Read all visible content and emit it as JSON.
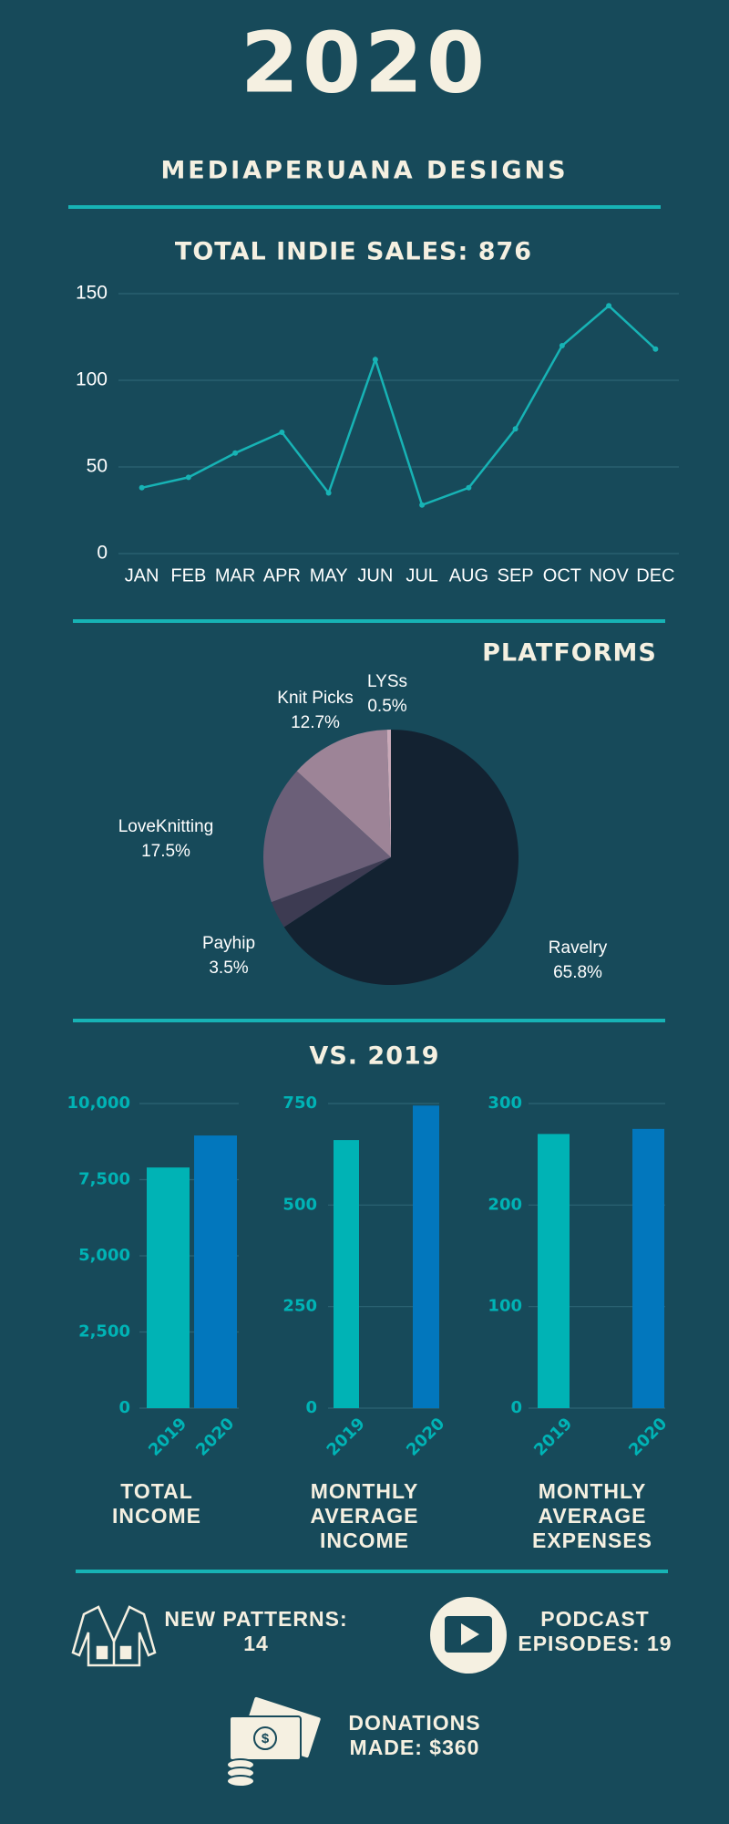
{
  "title": "2020",
  "subtitle": "MEDIAPERUANA DESIGNS",
  "comparison_title": "VS. 2019",
  "chart_data": [
    {
      "type": "line",
      "title": "TOTAL INDIE SALES: 876",
      "categories": [
        "JAN",
        "FEB",
        "MAR",
        "APR",
        "MAY",
        "JUN",
        "JUL",
        "AUG",
        "SEP",
        "OCT",
        "NOV",
        "DEC"
      ],
      "values": [
        38,
        44,
        58,
        70,
        35,
        112,
        28,
        38,
        72,
        120,
        143,
        118
      ],
      "color": "#17b3b5",
      "ylim": [
        0,
        150
      ],
      "yticks": [
        0,
        50,
        100,
        150
      ],
      "grid": true
    },
    {
      "type": "pie",
      "title": "PLATFORMS",
      "categories": [
        "Ravelry",
        "Payhip",
        "LoveKnitting",
        "Knit Picks",
        "LYSs"
      ],
      "values": [
        65.8,
        3.5,
        17.5,
        12.7,
        0.5
      ],
      "value_labels": [
        "65.8%",
        "3.5%",
        "17.5%",
        "12.7%",
        "0.5%"
      ],
      "colors": [
        "#132231",
        "#3d3b52",
        "#6b5f78",
        "#9d8497",
        "#c9a9b8"
      ]
    },
    {
      "type": "bar",
      "title": "TOTAL INCOME",
      "categories": [
        "2019",
        "2020"
      ],
      "values": [
        7900,
        8950
      ],
      "colors": [
        "#00b3b5",
        "#0277bd"
      ],
      "ylim": [
        0,
        10000
      ],
      "yticks": [
        0,
        {
          "value": 2500,
          "label": "2,500"
        },
        {
          "value": 5000,
          "label": "5,000"
        },
        {
          "value": 7500,
          "label": "7,500"
        },
        {
          "value": 10000,
          "label": "10,000"
        }
      ],
      "grid": true
    },
    {
      "type": "bar",
      "title": "MONTHLY AVERAGE INCOME",
      "categories": [
        "2019",
        "2020"
      ],
      "values": [
        660,
        745
      ],
      "colors": [
        "#00b3b5",
        "#0277bd"
      ],
      "ylim": [
        0,
        750
      ],
      "yticks": [
        0,
        250,
        500,
        750
      ],
      "grid": true
    },
    {
      "type": "bar",
      "title": "MONTHLY AVERAGE EXPENSES",
      "categories": [
        "2019",
        "2020"
      ],
      "values": [
        270,
        275
      ],
      "colors": [
        "#00b3b5",
        "#0277bd"
      ],
      "ylim": [
        0,
        300
      ],
      "yticks": [
        0,
        100,
        200,
        300
      ],
      "grid": true
    }
  ],
  "stats": [
    "NEW PATTERNS: 14",
    "PODCAST EPISODES: 19",
    "DONATIONS MADE: $360"
  ]
}
